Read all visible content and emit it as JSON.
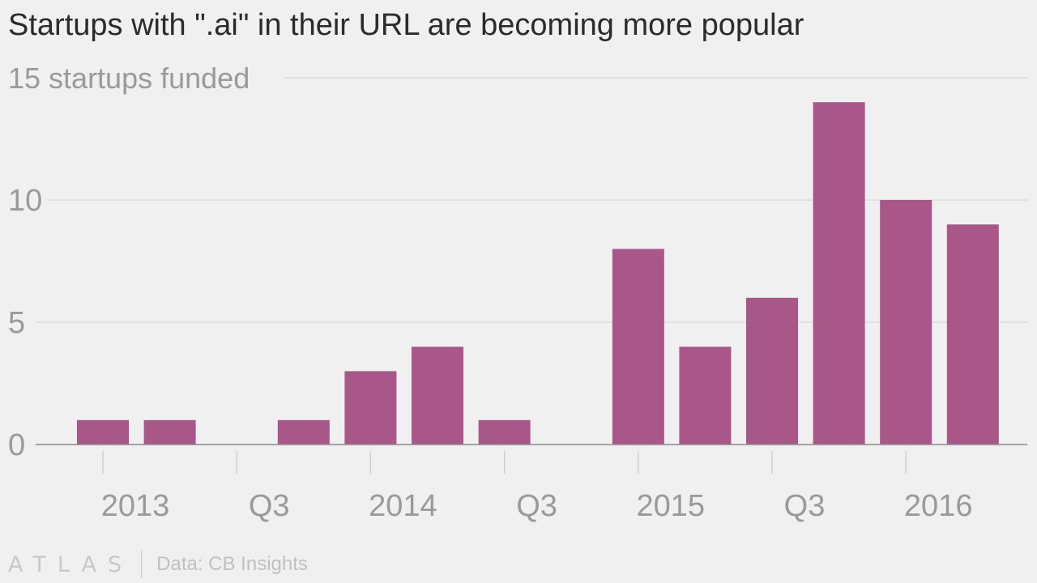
{
  "title": "Startups with \".ai\" in their URL are becoming more popular",
  "source": "Data: CB Insights",
  "logo_text": "ATLAS",
  "colors": {
    "bar": "#a85788",
    "grid": "#dcdcdc",
    "axis_text": "#9a9a9a",
    "background": "#f0f0f0"
  },
  "chart_data": {
    "type": "bar",
    "ylabel": "startups funded",
    "ylim": [
      0,
      15
    ],
    "y_ticks": [
      {
        "value": 0,
        "label": "0"
      },
      {
        "value": 5,
        "label": "5"
      },
      {
        "value": 10,
        "label": "10"
      },
      {
        "value": 15,
        "label": "15 startups funded"
      }
    ],
    "x_tick_labels": [
      "2013",
      "Q3",
      "2014",
      "Q3",
      "2015",
      "Q3",
      "2016"
    ],
    "categories": [
      "2013 Q1",
      "2013 Q2",
      "2013 Q3",
      "2013 Q4",
      "2014 Q1",
      "2014 Q2",
      "2014 Q3",
      "2014 Q4",
      "2015 Q1",
      "2015 Q2",
      "2015 Q3",
      "2015 Q4",
      "2016 Q1",
      "2016 Q2"
    ],
    "values": [
      1,
      1,
      0,
      1,
      3,
      4,
      1,
      0,
      8,
      4,
      6,
      14,
      10,
      9
    ],
    "grid": true,
    "legend": "none"
  }
}
